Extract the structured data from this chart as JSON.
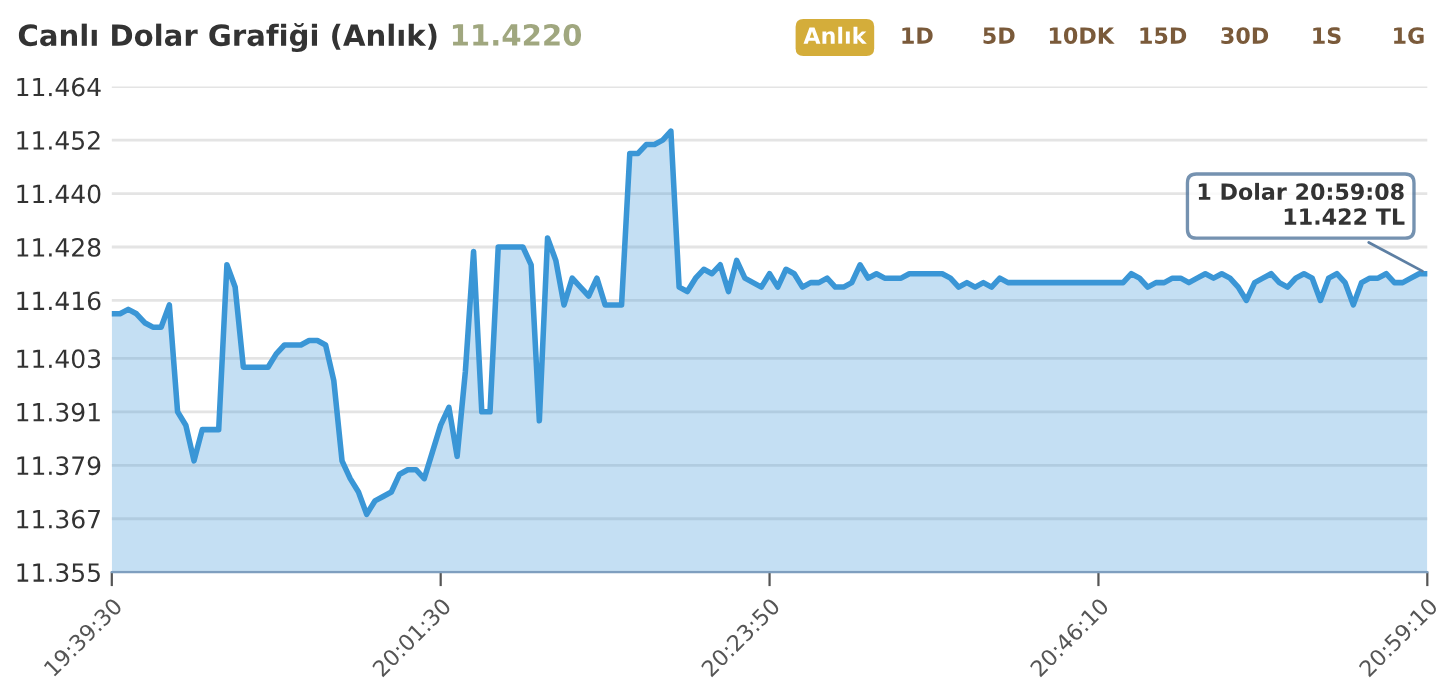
{
  "chart_data": {
    "type": "area",
    "title": "Canlı Dolar Grafiği (Anlık)",
    "subtitle": "11.4220",
    "annotations": [
      "Anlık",
      "1D",
      "5D",
      "10DK",
      "15D",
      "30D",
      "1S",
      "1G",
      {
        "text": "1 Dolar 20:59:08\n11.422 TL",
        "x": "20:59:10",
        "y": 11.422
      }
    ],
    "categories": [
      "19:39:30",
      null,
      null,
      null,
      null,
      null,
      null,
      null,
      null,
      null,
      null,
      null,
      null,
      null,
      null,
      null,
      null,
      null,
      null,
      null,
      null,
      null,
      null,
      null,
      null,
      null,
      null,
      null,
      null,
      null,
      null,
      null,
      null,
      null,
      null,
      null,
      null,
      null,
      null,
      null,
      "20:01:30",
      null,
      null,
      null,
      null,
      null,
      null,
      null,
      null,
      null,
      null,
      null,
      null,
      null,
      null,
      null,
      null,
      null,
      null,
      null,
      null,
      null,
      null,
      null,
      null,
      null,
      null,
      null,
      null,
      null,
      null,
      null,
      null,
      null,
      null,
      null,
      null,
      null,
      null,
      null,
      "20:23:50",
      null,
      null,
      null,
      null,
      null,
      null,
      null,
      null,
      null,
      null,
      null,
      null,
      null,
      null,
      null,
      null,
      null,
      null,
      null,
      null,
      null,
      null,
      null,
      null,
      null,
      null,
      null,
      null,
      null,
      null,
      null,
      null,
      null,
      null,
      null,
      null,
      null,
      null,
      null,
      "20:46:10",
      null,
      null,
      null,
      null,
      null,
      null,
      null,
      null,
      null,
      null,
      null,
      null,
      null,
      null,
      null,
      null,
      null,
      null,
      null,
      null,
      null,
      null,
      null,
      null,
      null,
      null,
      null,
      null,
      null,
      null,
      null,
      null,
      null,
      null,
      null,
      null,
      null,
      null,
      null,
      "20:59:10"
    ],
    "series": [
      {
        "color": "#3a96d6",
        "values": [
          11.413,
          11.413,
          11.414,
          11.413,
          11.411,
          11.41,
          11.41,
          11.415,
          11.391,
          11.388,
          11.38,
          11.387,
          11.387,
          11.387,
          11.424,
          11.419,
          11.401,
          11.401,
          11.401,
          11.401,
          11.404,
          11.406,
          11.406,
          11.406,
          11.407,
          11.407,
          11.406,
          11.398,
          11.38,
          11.376,
          11.373,
          11.368,
          11.371,
          11.372,
          11.373,
          11.377,
          11.378,
          11.378,
          11.376,
          11.382,
          11.388,
          11.392,
          11.381,
          11.4,
          11.427,
          11.391,
          11.391,
          11.428,
          11.428,
          11.428,
          11.428,
          11.424,
          11.389,
          11.43,
          11.425,
          11.415,
          11.421,
          11.419,
          11.417,
          11.421,
          11.415,
          11.415,
          11.415,
          11.449,
          11.449,
          11.451,
          11.451,
          11.452,
          11.454,
          11.419,
          11.418,
          11.421,
          11.423,
          11.422,
          11.424,
          11.418,
          11.425,
          11.421,
          11.42,
          11.419,
          11.422,
          11.419,
          11.423,
          11.422,
          11.419,
          11.42,
          11.42,
          11.421,
          11.419,
          11.419,
          11.42,
          11.424,
          11.421,
          11.422,
          11.421,
          11.421,
          11.421,
          11.422,
          11.422,
          11.422,
          11.422,
          11.422,
          11.421,
          11.419,
          11.42,
          11.419,
          11.42,
          11.419,
          11.421,
          11.42,
          11.42,
          11.42,
          11.42,
          11.42,
          11.42,
          11.42,
          11.42,
          11.42,
          11.42,
          11.42,
          11.42,
          11.42,
          11.42,
          11.42,
          11.422,
          11.421,
          11.419,
          11.42,
          11.42,
          11.421,
          11.421,
          11.42,
          11.421,
          11.422,
          11.421,
          11.422,
          11.421,
          11.419,
          11.416,
          11.42,
          11.421,
          11.422,
          11.42,
          11.419,
          11.421,
          11.422,
          11.421,
          11.416,
          11.421,
          11.422,
          11.42,
          11.415,
          11.42,
          11.421,
          11.421,
          11.422,
          11.42,
          11.42,
          11.421,
          11.422,
          11.422
        ]
      }
    ],
    "ylim": [
      11.355,
      11.464
    ],
    "yticks": [
      11.355,
      11.367,
      11.379,
      11.391,
      11.403,
      11.416,
      11.428,
      {
        "value": 11.44,
        "label": "11.440"
      },
      11.452,
      11.464
    ],
    "grid": "y",
    "legend": false
  }
}
